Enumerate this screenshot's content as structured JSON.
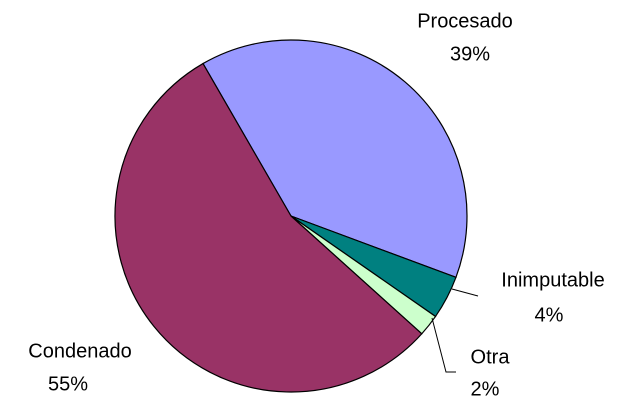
{
  "chart_data": {
    "type": "pie",
    "categories": [
      "Procesado",
      "Inimputable",
      "Otra",
      "Condenado"
    ],
    "values": [
      39,
      4,
      2,
      55
    ],
    "value_labels": [
      "39%",
      "4%",
      "2%",
      "55%"
    ],
    "colors": [
      "#9999ff",
      "#008080",
      "#ccffcc",
      "#993366"
    ]
  }
}
